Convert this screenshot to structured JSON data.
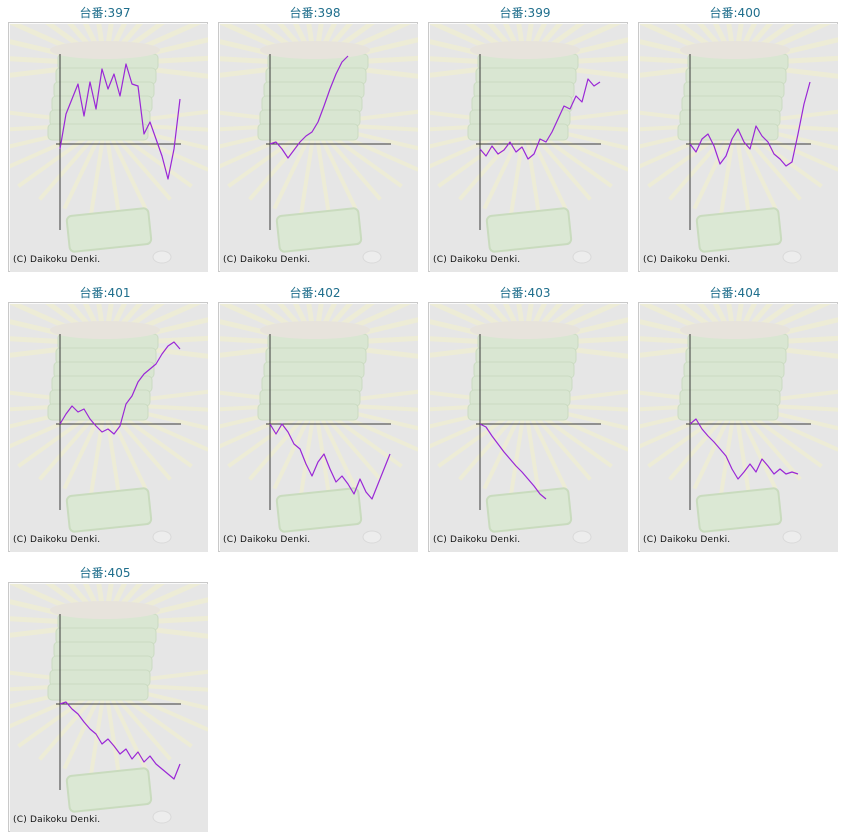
{
  "copyright": "(C) Daikoku Denki.",
  "colors": {
    "line": "#9a27d6",
    "axis": "#3a3a3a",
    "title": "#1f6e8c",
    "panel_bg": "#e6e6e6"
  },
  "machines": [
    {
      "title": "台番:397"
    },
    {
      "title": "台番:398"
    },
    {
      "title": "台番:399"
    },
    {
      "title": "台番:400"
    },
    {
      "title": "台番:401"
    },
    {
      "title": "台番:402"
    },
    {
      "title": "台番:403"
    },
    {
      "title": "台番:404"
    },
    {
      "title": "台番:405"
    }
  ],
  "chart_data": [
    {
      "type": "line",
      "title": "台番:397",
      "grid": false,
      "x": [
        0,
        5,
        10,
        15,
        20,
        25,
        30,
        35,
        40,
        45,
        50,
        55,
        60,
        65,
        70,
        75,
        80,
        85,
        90,
        95,
        100
      ],
      "y": [
        -5,
        30,
        45,
        60,
        28,
        62,
        35,
        75,
        55,
        70,
        48,
        80,
        60,
        58,
        10,
        22,
        5,
        -12,
        -35,
        -5,
        45
      ]
    },
    {
      "type": "line",
      "title": "台番:398",
      "grid": false,
      "x": [
        0,
        5,
        10,
        15,
        20,
        25,
        30,
        35,
        40,
        45,
        50,
        55,
        60,
        65
      ],
      "y": [
        0,
        2,
        -5,
        -14,
        -6,
        2,
        8,
        12,
        22,
        38,
        55,
        70,
        82,
        88
      ]
    },
    {
      "type": "line",
      "title": "台番:399",
      "grid": false,
      "x": [
        0,
        5,
        10,
        15,
        20,
        25,
        30,
        35,
        40,
        45,
        50,
        55,
        60,
        65,
        70,
        75,
        80,
        85,
        90,
        95,
        100
      ],
      "y": [
        -5,
        -12,
        -2,
        -10,
        -6,
        2,
        -8,
        -3,
        -15,
        -10,
        5,
        2,
        12,
        25,
        38,
        35,
        48,
        42,
        65,
        58,
        62
      ]
    },
    {
      "type": "line",
      "title": "台番:400",
      "grid": false,
      "x": [
        0,
        5,
        10,
        15,
        20,
        25,
        30,
        35,
        40,
        45,
        50,
        55,
        60,
        65,
        70,
        75,
        80,
        85,
        90,
        95,
        100
      ],
      "y": [
        0,
        -8,
        5,
        10,
        -2,
        -20,
        -12,
        5,
        15,
        2,
        -5,
        18,
        8,
        2,
        -10,
        -15,
        -22,
        -18,
        10,
        40,
        62
      ]
    },
    {
      "type": "line",
      "title": "台番:401",
      "grid": false,
      "x": [
        0,
        5,
        10,
        15,
        20,
        25,
        30,
        35,
        40,
        45,
        50,
        55,
        60,
        65,
        70,
        75,
        80,
        85,
        90,
        95,
        100
      ],
      "y": [
        0,
        10,
        18,
        12,
        15,
        5,
        -2,
        -8,
        -5,
        -10,
        -2,
        20,
        28,
        42,
        50,
        55,
        60,
        70,
        78,
        82,
        75
      ]
    },
    {
      "type": "line",
      "title": "台番:402",
      "grid": false,
      "x": [
        0,
        5,
        10,
        15,
        20,
        25,
        30,
        35,
        40,
        45,
        50,
        55,
        60,
        65,
        70,
        75,
        80,
        85,
        90,
        95,
        100
      ],
      "y": [
        0,
        -10,
        0,
        -8,
        -20,
        -25,
        -40,
        -52,
        -38,
        -30,
        -45,
        -58,
        -52,
        -60,
        -70,
        -55,
        -68,
        -75,
        -60,
        -45,
        -30
      ]
    },
    {
      "type": "line",
      "title": "台番:403",
      "grid": false,
      "x": [
        0,
        5,
        10,
        15,
        20,
        25,
        30,
        35,
        40,
        45,
        50,
        55
      ],
      "y": [
        0,
        -3,
        -12,
        -20,
        -28,
        -35,
        -42,
        -48,
        -55,
        -62,
        -70,
        -75
      ]
    },
    {
      "type": "line",
      "title": "台番:404",
      "grid": false,
      "x": [
        0,
        5,
        10,
        15,
        20,
        25,
        30,
        35,
        40,
        45,
        50,
        55,
        60,
        65,
        70,
        75,
        80,
        85,
        90
      ],
      "y": [
        0,
        5,
        -5,
        -12,
        -18,
        -25,
        -32,
        -45,
        -55,
        -48,
        -40,
        -48,
        -35,
        -42,
        -50,
        -45,
        -50,
        -48,
        -50
      ]
    },
    {
      "type": "line",
      "title": "台番:405",
      "grid": false,
      "x": [
        0,
        5,
        10,
        15,
        20,
        25,
        30,
        35,
        40,
        45,
        50,
        55,
        60,
        65,
        70,
        75,
        80,
        85,
        90,
        95,
        100
      ],
      "y": [
        0,
        2,
        -5,
        -10,
        -18,
        -25,
        -30,
        -40,
        -35,
        -42,
        -50,
        -45,
        -55,
        -48,
        -58,
        -52,
        -60,
        -65,
        -70,
        -75,
        -60
      ]
    }
  ]
}
